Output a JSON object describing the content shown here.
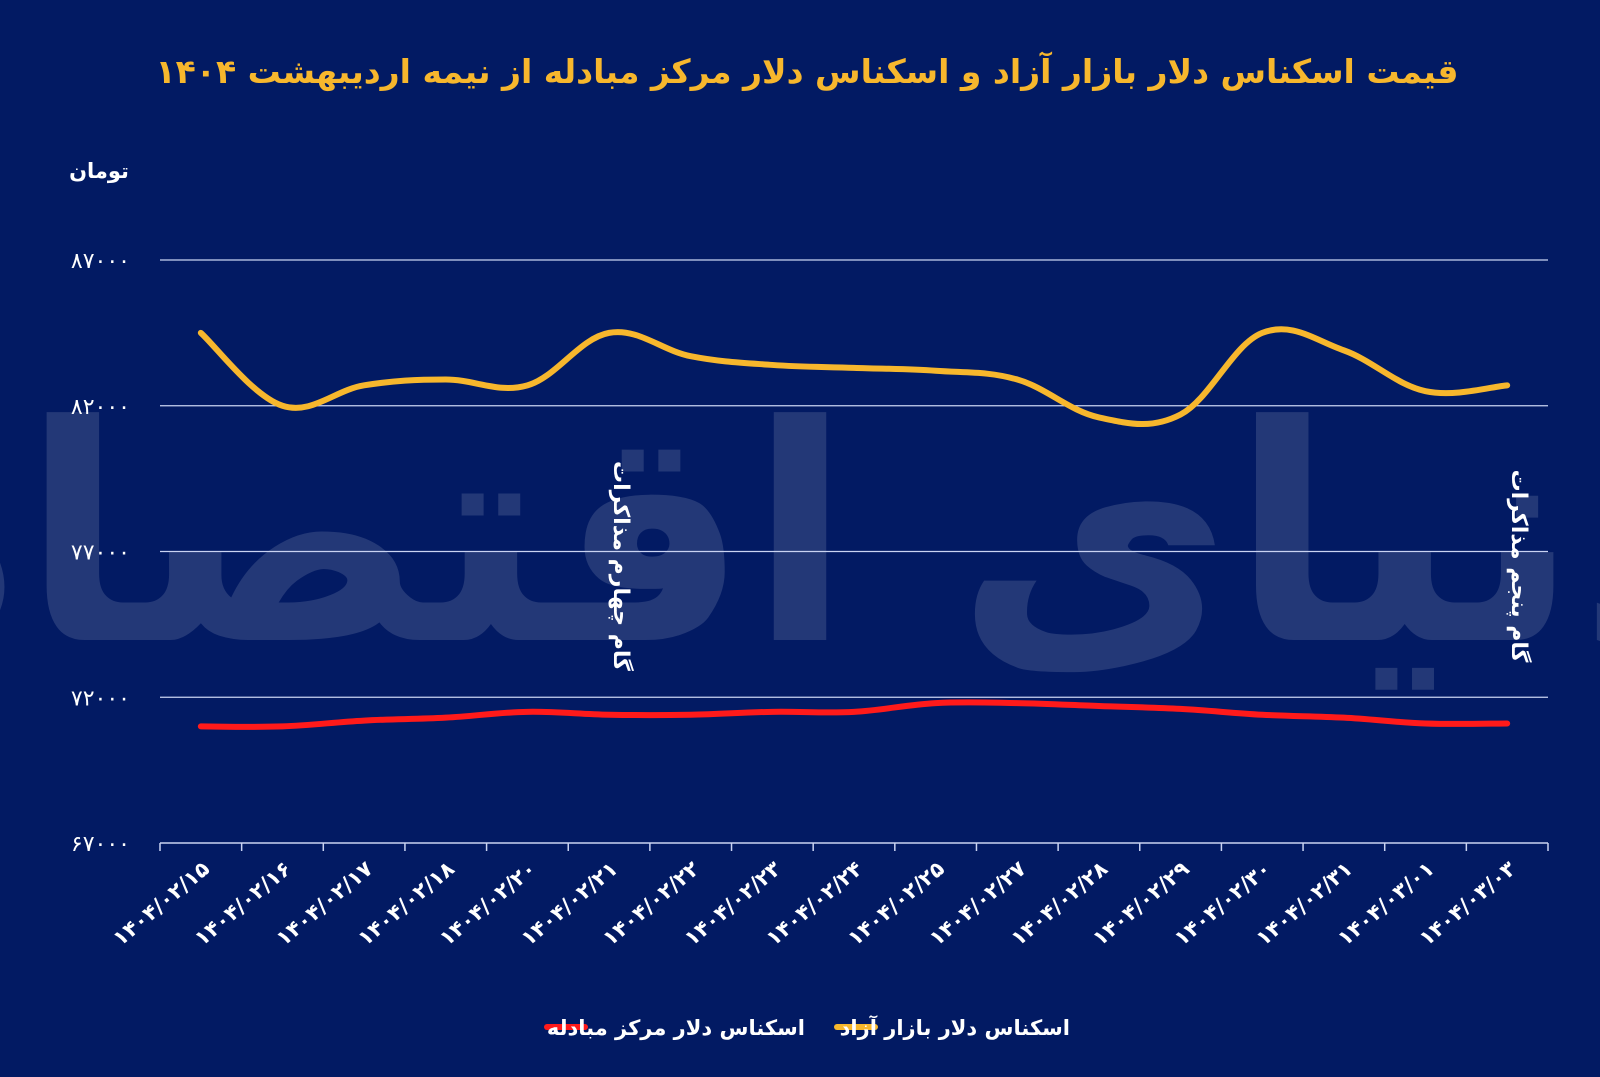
{
  "chart_data": {
    "type": "line",
    "title": "قیمت اسکناس دلار بازار آزاد و اسکناس دلار مرکز مبادله از نیمه اردیبهشت ۱۴۰۴",
    "ylabel": "تومان",
    "xlabel": "",
    "ylim": [
      67000,
      87000
    ],
    "yticks": [
      "۸۷۰۰۰",
      "۸۲۰۰۰",
      "۷۷۰۰۰",
      "۷۲۰۰۰",
      "۶۷۰۰۰"
    ],
    "ytick_values": [
      87000,
      82000,
      77000,
      72000,
      67000
    ],
    "categories": [
      "۱۴۰۴/۰۲/۱۵",
      "۱۴۰۴/۰۲/۱۶",
      "۱۴۰۴/۰۲/۱۷",
      "۱۴۰۴/۰۲/۱۸",
      "۱۴۰۴/۰۲/۲۰",
      "۱۴۰۴/۰۲/۲۱",
      "۱۴۰۴/۰۲/۲۲",
      "۱۴۰۴/۰۲/۲۳",
      "۱۴۰۴/۰۲/۲۴",
      "۱۴۰۴/۰۲/۲۵",
      "۱۴۰۴/۰۲/۲۷",
      "۱۴۰۴/۰۲/۲۸",
      "۱۴۰۴/۰۲/۲۹",
      "۱۴۰۴/۰۲/۳۰",
      "۱۴۰۴/۰۲/۳۱",
      "۱۴۰۴/۰۳/۰۱",
      "۱۴۰۴/۰۳/۰۳"
    ],
    "series": [
      {
        "name": "اسکناس دلار بازار آزاد",
        "color": "#f7b72d",
        "values": [
          84500,
          82000,
          82700,
          82900,
          82700,
          84500,
          83700,
          83400,
          83300,
          83200,
          82900,
          81600,
          81700,
          84500,
          83900,
          82500,
          82700
        ]
      },
      {
        "name": "اسکناس دلار مرکز مبادله",
        "color": "#ff1a1a",
        "values": [
          71000,
          71000,
          71200,
          71300,
          71500,
          71400,
          71400,
          71500,
          71500,
          71800,
          71800,
          71700,
          71600,
          71400,
          71300,
          71100,
          71100
        ]
      }
    ],
    "annotations": [
      {
        "text": "گام چهارم مذاکرات",
        "category_index": 5
      },
      {
        "text": "گام پنجم مذاکرات",
        "category_index": 16
      }
    ],
    "grid": true,
    "legend_position": "bottom-center",
    "watermark": "دنیای اقتصاد",
    "colors": {
      "background": "#021a63",
      "title": "#f7b72d",
      "text": "#ffffff",
      "grid": "#c9d3f2"
    }
  }
}
